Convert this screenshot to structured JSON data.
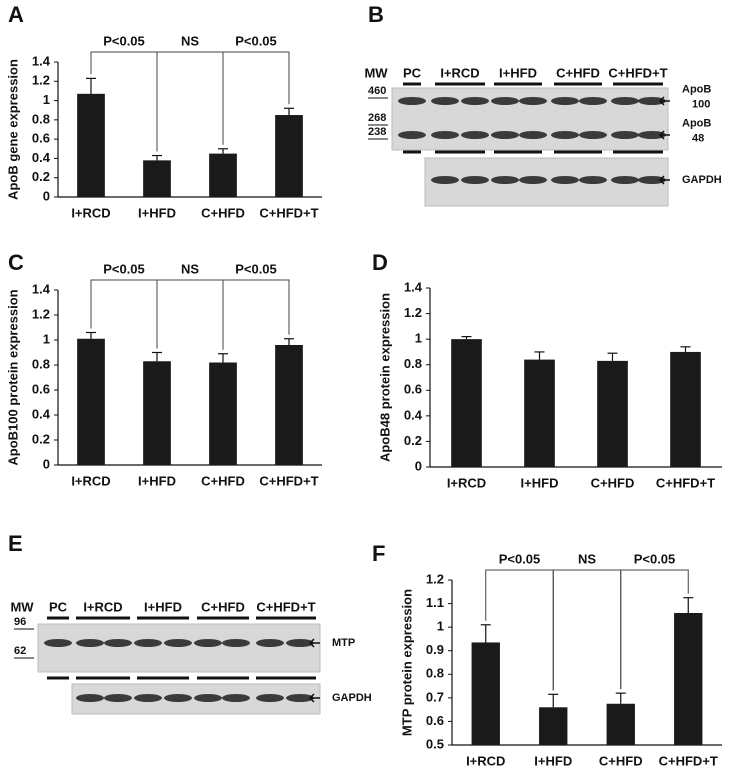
{
  "panels": [
    "A",
    "B",
    "C",
    "D",
    "E",
    "F"
  ],
  "chart_data": [
    {
      "type": "bar",
      "ylabel": "ApoB gene expression",
      "categories": [
        "I+RCD",
        "I+HFD",
        "C+HFD",
        "C+HFD+T"
      ],
      "values": [
        1.07,
        0.38,
        0.45,
        0.85
      ],
      "errors": [
        0.16,
        0.05,
        0.05,
        0.07
      ],
      "color": "#1a1a1a",
      "ylim": [
        0,
        1.4
      ],
      "yticks": [
        0,
        0.2,
        0.4,
        0.6,
        0.8,
        1,
        1.2,
        1.4
      ],
      "annotations": [
        "P<0.05",
        "NS",
        "P<0.05"
      ]
    },
    {
      "type": "bar",
      "ylabel": "ApoB100 protein expression",
      "categories": [
        "I+RCD",
        "I+HFD",
        "C+HFD",
        "C+HFD+T"
      ],
      "values": [
        1.01,
        0.83,
        0.82,
        0.96
      ],
      "errors": [
        0.05,
        0.07,
        0.07,
        0.05
      ],
      "color": "#1a1a1a",
      "ylim": [
        0,
        1.4
      ],
      "yticks": [
        0,
        0.2,
        0.4,
        0.6,
        0.8,
        1,
        1.2,
        1.4
      ],
      "annotations": [
        "P<0.05",
        "NS",
        "P<0.05"
      ]
    },
    {
      "type": "bar",
      "ylabel": "ApoB48 protein expression",
      "categories": [
        "I+RCD",
        "I+HFD",
        "C+HFD",
        "C+HFD+T"
      ],
      "values": [
        1.0,
        0.84,
        0.83,
        0.9
      ],
      "errors": [
        0.02,
        0.06,
        0.06,
        0.04
      ],
      "color": "#1a1a1a",
      "ylim": [
        0,
        1.4
      ],
      "yticks": [
        0,
        0.2,
        0.4,
        0.6,
        0.8,
        1,
        1.2,
        1.4
      ]
    },
    {
      "type": "bar",
      "ylabel": "MTP protein expression",
      "categories": [
        "I+RCD",
        "I+HFD",
        "C+HFD",
        "C+HFD+T"
      ],
      "values": [
        0.935,
        0.66,
        0.675,
        1.06
      ],
      "errors": [
        0.075,
        0.055,
        0.045,
        0.065
      ],
      "color": "#1a1a1a",
      "ylim": [
        0.5,
        1.2
      ],
      "yticks": [
        0.5,
        0.6,
        0.7,
        0.8,
        0.9,
        1,
        1.1,
        1.2
      ],
      "annotations": [
        "P<0.05",
        "NS",
        "P<0.05"
      ]
    }
  ],
  "blots": [
    {
      "lanes": [
        "MW",
        "PC",
        "I+RCD",
        "I+HFD",
        "C+HFD",
        "C+HFD+T"
      ],
      "markers": [
        460,
        268,
        238
      ],
      "bands": [
        [
          "ApoB",
          "100"
        ],
        [
          "ApoB",
          "48"
        ],
        [
          "GAPDH"
        ]
      ]
    },
    {
      "lanes": [
        "MW",
        "PC",
        "I+RCD",
        "I+HFD",
        "C+HFD",
        "C+HFD+T"
      ],
      "markers": [
        96,
        62
      ],
      "bands": [
        [
          "MTP"
        ],
        [
          "GAPDH"
        ]
      ]
    }
  ]
}
